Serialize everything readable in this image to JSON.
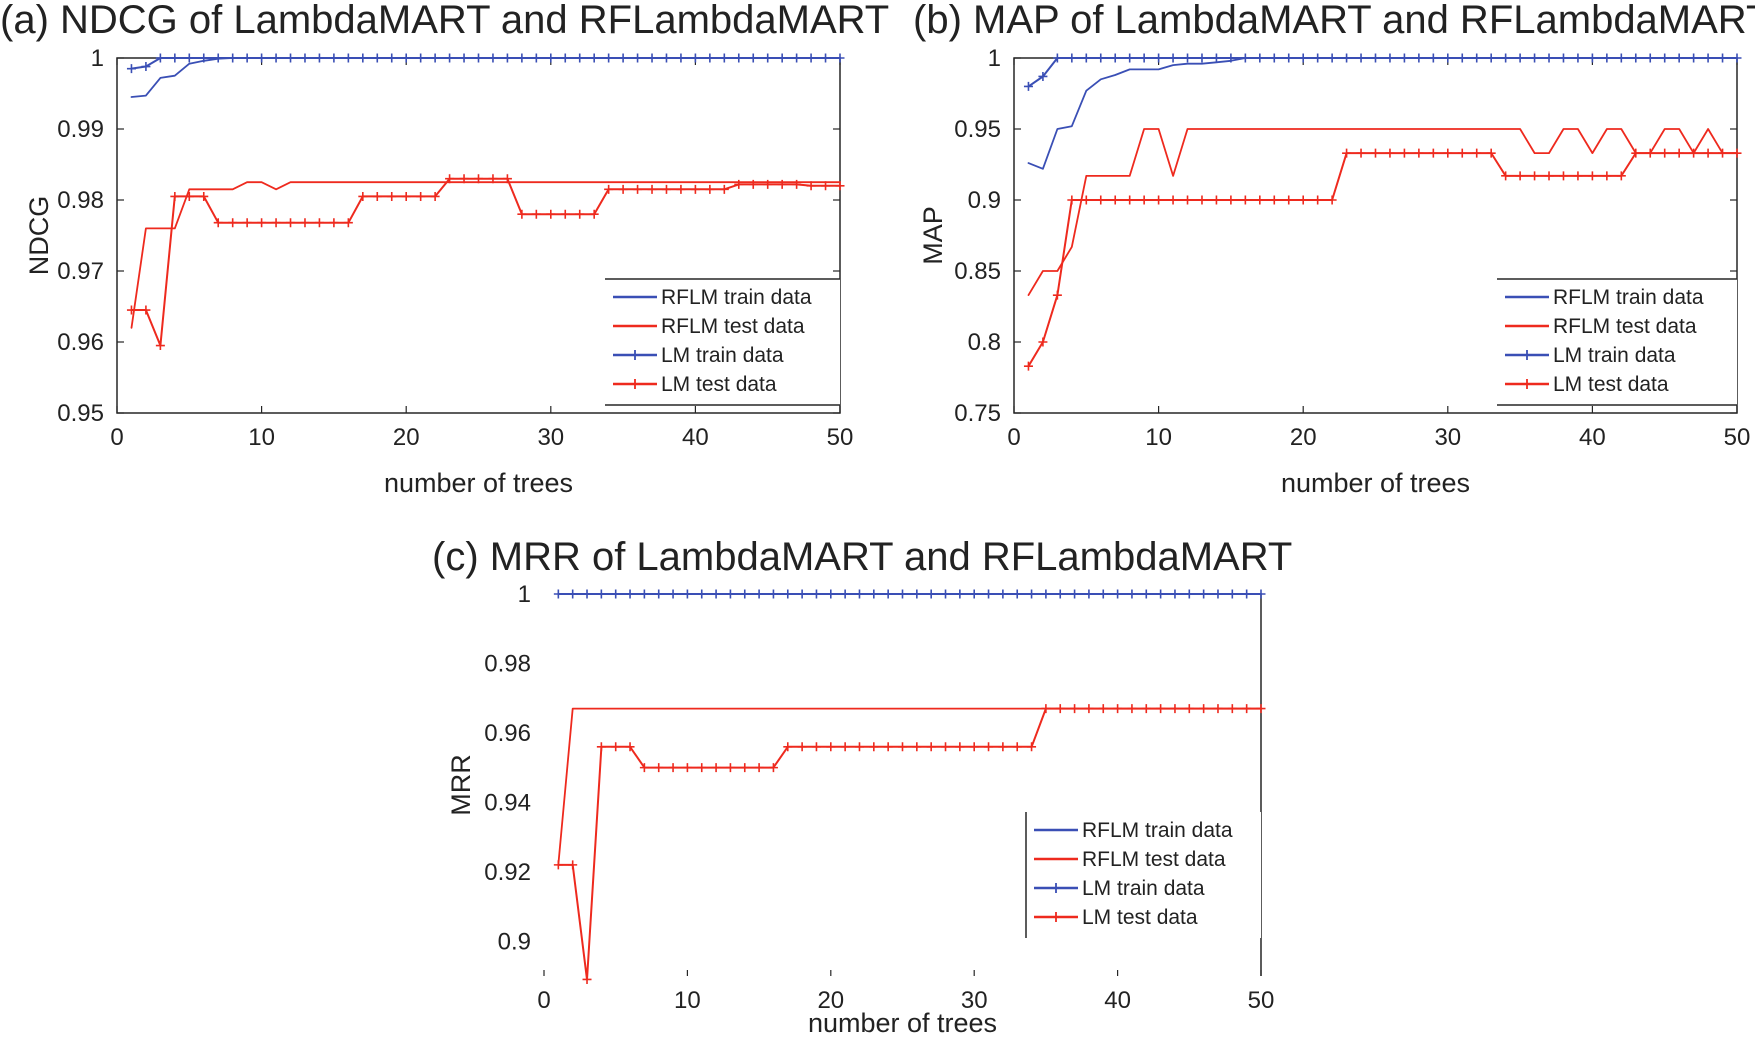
{
  "chart_data": [
    {
      "type": "line",
      "panel": "a",
      "title": "(a) NDCG of LambdaMART and RFLambdaMART",
      "xlabel": "number of trees",
      "ylabel": "NDCG",
      "xlim": [
        0,
        50
      ],
      "ylim": [
        0.95,
        1.0
      ],
      "xticks": [
        "0",
        "10",
        "20",
        "30",
        "40",
        "50"
      ],
      "yticks": [
        "0.95",
        "0.96",
        "0.97",
        "0.98",
        "0.99",
        "1"
      ],
      "legend_position": "lower-right",
      "series": [
        {
          "name": "RFLM train data",
          "color": "#3a4fb5",
          "marker": "none",
          "x": [
            1,
            2,
            3,
            4,
            5,
            6,
            7,
            8,
            50
          ],
          "y": [
            0.9945,
            0.9947,
            0.9972,
            0.9975,
            0.9992,
            0.9996,
            0.9999,
            1.0,
            1.0
          ]
        },
        {
          "name": "RFLM test data",
          "color": "#ee2a1e",
          "marker": "none",
          "x": [
            1,
            2,
            4,
            5,
            8,
            9,
            10,
            11,
            12,
            50
          ],
          "y": [
            0.962,
            0.976,
            0.976,
            0.9815,
            0.9815,
            0.9825,
            0.9825,
            0.9815,
            0.9825,
            0.9825
          ]
        },
        {
          "name": "LM train data",
          "color": "#3a4fb5",
          "marker": "plus",
          "x": [
            1,
            2,
            3,
            4,
            5,
            6,
            7,
            8,
            9,
            10,
            11,
            12,
            13,
            14,
            15,
            16,
            17,
            18,
            19,
            20,
            21,
            22,
            23,
            24,
            25,
            26,
            27,
            28,
            29,
            30,
            31,
            32,
            33,
            34,
            35,
            36,
            37,
            38,
            39,
            40,
            41,
            42,
            43,
            44,
            45,
            46,
            47,
            48,
            49,
            50
          ],
          "y": [
            0.9985,
            0.9988,
            1.0,
            1.0,
            1.0,
            1.0,
            1.0,
            1.0,
            1.0,
            1.0,
            1.0,
            1.0,
            1.0,
            1.0,
            1.0,
            1.0,
            1.0,
            1.0,
            1.0,
            1.0,
            1.0,
            1.0,
            1.0,
            1.0,
            1.0,
            1.0,
            1.0,
            1.0,
            1.0,
            1.0,
            1.0,
            1.0,
            1.0,
            1.0,
            1.0,
            1.0,
            1.0,
            1.0,
            1.0,
            1.0,
            1.0,
            1.0,
            1.0,
            1.0,
            1.0,
            1.0,
            1.0,
            1.0,
            1.0,
            1.0
          ]
        },
        {
          "name": "LM test data",
          "color": "#ee2a1e",
          "marker": "plus",
          "x": [
            1,
            2,
            3,
            4,
            5,
            6,
            7,
            8,
            9,
            10,
            11,
            12,
            13,
            14,
            15,
            16,
            17,
            18,
            19,
            20,
            21,
            22,
            23,
            24,
            25,
            26,
            27,
            28,
            29,
            30,
            31,
            32,
            33,
            34,
            35,
            36,
            37,
            38,
            39,
            40,
            41,
            42,
            43,
            44,
            45,
            46,
            47,
            48,
            49,
            50
          ],
          "y": [
            0.9645,
            0.9645,
            0.9595,
            0.9805,
            0.9805,
            0.9805,
            0.9768,
            0.9768,
            0.9768,
            0.9768,
            0.9768,
            0.9768,
            0.9768,
            0.9768,
            0.9768,
            0.9768,
            0.9805,
            0.9805,
            0.9805,
            0.9805,
            0.9805,
            0.9805,
            0.983,
            0.983,
            0.983,
            0.983,
            0.983,
            0.978,
            0.978,
            0.978,
            0.978,
            0.978,
            0.978,
            0.9815,
            0.9815,
            0.9815,
            0.9815,
            0.9815,
            0.9815,
            0.9815,
            0.9815,
            0.9815,
            0.9822,
            0.9822,
            0.9822,
            0.9822,
            0.9822,
            0.982,
            0.982,
            0.982
          ]
        }
      ]
    },
    {
      "type": "line",
      "panel": "b",
      "title": "(b) MAP of LambdaMART and RFLambdaMART",
      "xlabel": "number of trees",
      "ylabel": "MAP",
      "xlim": [
        0,
        50
      ],
      "ylim": [
        0.75,
        1.0
      ],
      "xticks": [
        "0",
        "10",
        "20",
        "30",
        "40",
        "50"
      ],
      "yticks": [
        "0.75",
        "0.8",
        "0.85",
        "0.9",
        "0.95",
        "1"
      ],
      "legend_position": "lower-right",
      "series": [
        {
          "name": "RFLM train data",
          "color": "#3a4fb5",
          "marker": "none",
          "x": [
            1,
            2,
            3,
            4,
            5,
            6,
            7,
            8,
            9,
            10,
            11,
            12,
            13,
            14,
            15,
            16,
            50
          ],
          "y": [
            0.926,
            0.922,
            0.95,
            0.952,
            0.977,
            0.985,
            0.988,
            0.992,
            0.992,
            0.992,
            0.995,
            0.996,
            0.996,
            0.997,
            0.998,
            1.0,
            1.0
          ]
        },
        {
          "name": "RFLM test data",
          "color": "#ee2a1e",
          "marker": "none",
          "x": [
            1,
            2,
            3,
            4,
            5,
            8,
            9,
            10,
            11,
            12,
            35,
            36,
            37,
            38,
            39,
            40,
            41,
            42,
            43,
            44,
            45,
            46,
            47,
            48,
            49,
            50
          ],
          "y": [
            0.833,
            0.85,
            0.85,
            0.867,
            0.917,
            0.917,
            0.95,
            0.95,
            0.917,
            0.95,
            0.95,
            0.933,
            0.933,
            0.95,
            0.95,
            0.933,
            0.95,
            0.95,
            0.933,
            0.933,
            0.95,
            0.95,
            0.933,
            0.95,
            0.933,
            0.933
          ]
        },
        {
          "name": "LM train data",
          "color": "#3a4fb5",
          "marker": "plus",
          "x": [
            1,
            2,
            3,
            4,
            5,
            6,
            7,
            8,
            9,
            10,
            11,
            12,
            13,
            14,
            15,
            16,
            17,
            18,
            19,
            20,
            21,
            22,
            23,
            24,
            25,
            26,
            27,
            28,
            29,
            30,
            31,
            32,
            33,
            34,
            35,
            36,
            37,
            38,
            39,
            40,
            41,
            42,
            43,
            44,
            45,
            46,
            47,
            48,
            49,
            50
          ],
          "y": [
            0.98,
            0.987,
            1.0,
            1.0,
            1.0,
            1.0,
            1.0,
            1.0,
            1.0,
            1.0,
            1.0,
            1.0,
            1.0,
            1.0,
            1.0,
            1.0,
            1.0,
            1.0,
            1.0,
            1.0,
            1.0,
            1.0,
            1.0,
            1.0,
            1.0,
            1.0,
            1.0,
            1.0,
            1.0,
            1.0,
            1.0,
            1.0,
            1.0,
            1.0,
            1.0,
            1.0,
            1.0,
            1.0,
            1.0,
            1.0,
            1.0,
            1.0,
            1.0,
            1.0,
            1.0,
            1.0,
            1.0,
            1.0,
            1.0,
            1.0
          ]
        },
        {
          "name": "LM test data",
          "color": "#ee2a1e",
          "marker": "plus",
          "x": [
            1,
            2,
            3,
            4,
            5,
            6,
            7,
            8,
            9,
            10,
            11,
            12,
            13,
            14,
            15,
            16,
            17,
            18,
            19,
            20,
            21,
            22,
            23,
            24,
            25,
            26,
            27,
            28,
            29,
            30,
            31,
            32,
            33,
            34,
            35,
            36,
            37,
            38,
            39,
            40,
            41,
            42,
            43,
            44,
            45,
            46,
            47,
            48,
            49,
            50
          ],
          "y": [
            0.783,
            0.8,
            0.833,
            0.9,
            0.9,
            0.9,
            0.9,
            0.9,
            0.9,
            0.9,
            0.9,
            0.9,
            0.9,
            0.9,
            0.9,
            0.9,
            0.9,
            0.9,
            0.9,
            0.9,
            0.9,
            0.9,
            0.933,
            0.933,
            0.933,
            0.933,
            0.933,
            0.933,
            0.933,
            0.933,
            0.933,
            0.933,
            0.933,
            0.917,
            0.917,
            0.917,
            0.917,
            0.917,
            0.917,
            0.917,
            0.917,
            0.917,
            0.933,
            0.933,
            0.933,
            0.933,
            0.933,
            0.933,
            0.933,
            0.933
          ]
        }
      ]
    },
    {
      "type": "line",
      "panel": "c",
      "title": "(c) MRR of LambdaMART and RFLambdaMART",
      "xlabel": "number of trees",
      "ylabel": "MRR",
      "xlim": [
        0,
        50
      ],
      "ylim": [
        0.89,
        1.0
      ],
      "xticks": [
        "0",
        "10",
        "20",
        "30",
        "40",
        "50"
      ],
      "yticks": [
        "0.9",
        "0.92",
        "0.94",
        "0.96",
        "0.98",
        "1"
      ],
      "legend_position": "lower-right",
      "series": [
        {
          "name": "RFLM train data",
          "color": "#3a4fb5",
          "marker": "none",
          "x": [
            1,
            50
          ],
          "y": [
            1.0,
            1.0
          ]
        },
        {
          "name": "RFLM test data",
          "color": "#ee2a1e",
          "marker": "none",
          "x": [
            1,
            2,
            50
          ],
          "y": [
            0.922,
            0.967,
            0.967
          ]
        },
        {
          "name": "LM train data",
          "color": "#3a4fb5",
          "marker": "plus",
          "x": [
            1,
            2,
            3,
            4,
            5,
            6,
            7,
            8,
            9,
            10,
            11,
            12,
            13,
            14,
            15,
            16,
            17,
            18,
            19,
            20,
            21,
            22,
            23,
            24,
            25,
            26,
            27,
            28,
            29,
            30,
            31,
            32,
            33,
            34,
            35,
            36,
            37,
            38,
            39,
            40,
            41,
            42,
            43,
            44,
            45,
            46,
            47,
            48,
            49,
            50
          ],
          "y": [
            1.0,
            1.0,
            1.0,
            1.0,
            1.0,
            1.0,
            1.0,
            1.0,
            1.0,
            1.0,
            1.0,
            1.0,
            1.0,
            1.0,
            1.0,
            1.0,
            1.0,
            1.0,
            1.0,
            1.0,
            1.0,
            1.0,
            1.0,
            1.0,
            1.0,
            1.0,
            1.0,
            1.0,
            1.0,
            1.0,
            1.0,
            1.0,
            1.0,
            1.0,
            1.0,
            1.0,
            1.0,
            1.0,
            1.0,
            1.0,
            1.0,
            1.0,
            1.0,
            1.0,
            1.0,
            1.0,
            1.0,
            1.0,
            1.0,
            1.0
          ]
        },
        {
          "name": "LM test data",
          "color": "#ee2a1e",
          "marker": "plus",
          "x": [
            1,
            2,
            3,
            4,
            5,
            6,
            7,
            8,
            9,
            10,
            11,
            12,
            13,
            14,
            15,
            16,
            17,
            18,
            19,
            20,
            21,
            22,
            23,
            24,
            25,
            26,
            27,
            28,
            29,
            30,
            31,
            32,
            33,
            34,
            35,
            36,
            37,
            38,
            39,
            40,
            41,
            42,
            43,
            44,
            45,
            46,
            47,
            48,
            49,
            50
          ],
          "y": [
            0.922,
            0.922,
            0.889,
            0.956,
            0.956,
            0.956,
            0.95,
            0.95,
            0.95,
            0.95,
            0.95,
            0.95,
            0.95,
            0.95,
            0.95,
            0.95,
            0.956,
            0.956,
            0.956,
            0.956,
            0.956,
            0.956,
            0.956,
            0.956,
            0.956,
            0.956,
            0.956,
            0.956,
            0.956,
            0.956,
            0.956,
            0.956,
            0.956,
            0.956,
            0.967,
            0.967,
            0.967,
            0.967,
            0.967,
            0.967,
            0.967,
            0.967,
            0.967,
            0.967,
            0.967,
            0.967,
            0.967,
            0.967,
            0.967,
            0.967
          ]
        }
      ]
    }
  ]
}
